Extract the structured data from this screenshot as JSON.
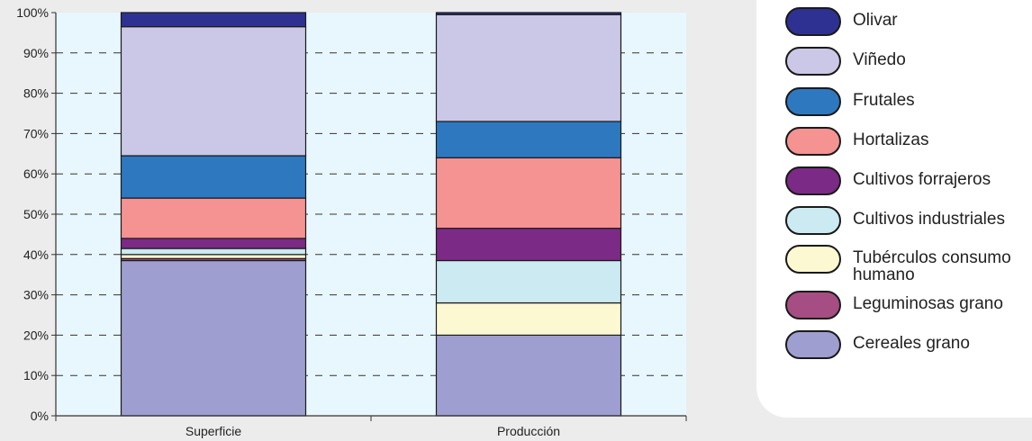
{
  "chart_data": {
    "type": "stacked-bar-100",
    "categories": [
      "Superficie",
      "Producción"
    ],
    "yticks": [
      "0%",
      "10%",
      "20%",
      "30%",
      "40%",
      "50%",
      "60%",
      "70%",
      "80%",
      "90%",
      "100%"
    ],
    "ylim": [
      0,
      100
    ],
    "grid": "dashed horizontal",
    "legend_position": "right",
    "series": [
      {
        "name": "Cereales grano",
        "color": "#9e9ed0",
        "values": [
          38.5,
          20.0
        ]
      },
      {
        "name": "Leguminosas grano",
        "color": "#a64d84",
        "values": [
          0.5,
          0.0
        ]
      },
      {
        "name": "Tubérculos consumo humano",
        "color": "#fcf8d2",
        "values": [
          1.0,
          8.0
        ]
      },
      {
        "name": "Cultivos industriales",
        "color": "#cbeaf1",
        "values": [
          1.5,
          10.5
        ]
      },
      {
        "name": "Cultivos forrajeros",
        "color": "#7b2a85",
        "values": [
          2.5,
          8.0
        ]
      },
      {
        "name": "Hortalizas",
        "color": "#f59292",
        "values": [
          10.0,
          17.5
        ]
      },
      {
        "name": "Frutales",
        "color": "#2e78c0",
        "values": [
          10.5,
          9.0
        ]
      },
      {
        "name": "Viñedo",
        "color": "#cac8e6",
        "values": [
          32.0,
          26.5
        ]
      },
      {
        "name": "Olivar",
        "color": "#2e3192",
        "values": [
          3.5,
          0.5
        ]
      }
    ]
  }
}
